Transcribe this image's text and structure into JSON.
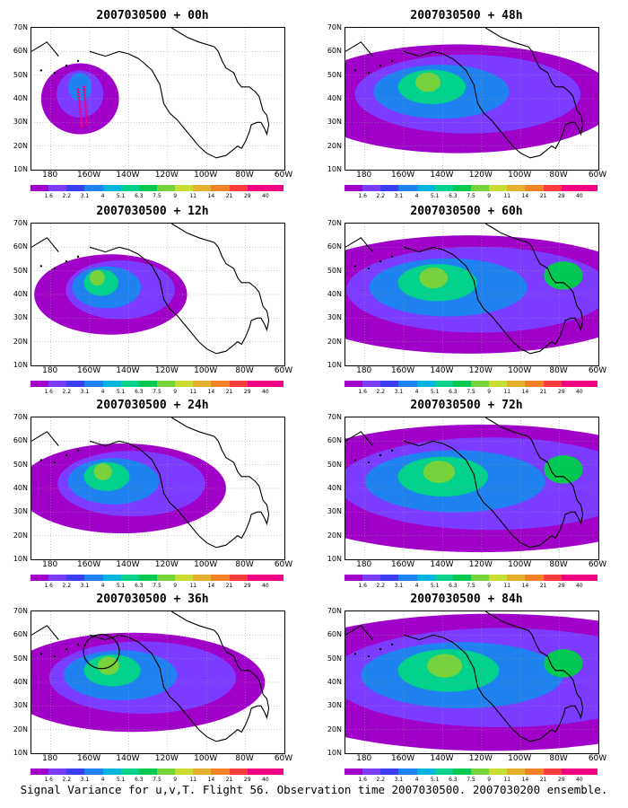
{
  "caption": "Signal Variance for u,v,T. Flight 56. Observation time 2007030500. 2007030200 ensemble.",
  "panels": [
    {
      "title": "2007030500 + 00h"
    },
    {
      "title": "2007030500 + 48h"
    },
    {
      "title": "2007030500 + 12h"
    },
    {
      "title": "2007030500 + 60h"
    },
    {
      "title": "2007030500 + 24h"
    },
    {
      "title": "2007030500 + 72h"
    },
    {
      "title": "2007030500 + 36h"
    },
    {
      "title": "2007030500 + 84h"
    }
  ],
  "lat_labels": [
    "70N",
    "60N",
    "50N",
    "40N",
    "30N",
    "20N",
    "10N"
  ],
  "lon_labels": [
    "180",
    "160W",
    "140W",
    "120W",
    "100W",
    "80W",
    "60W"
  ],
  "colorbar": {
    "labels": [
      "1.6",
      "2.2",
      "3.1",
      "4",
      "5.1",
      "6.3",
      "7.5",
      "9",
      "11",
      "14",
      "21",
      "29",
      "40"
    ],
    "colors": [
      "#a000c8",
      "#7c3cff",
      "#3c3cf0",
      "#1e82f0",
      "#00b4dc",
      "#00d28c",
      "#00c850",
      "#78d23c",
      "#c8dc32",
      "#e6af2d",
      "#f08228",
      "#fa3c3c",
      "#f00082"
    ]
  }
}
